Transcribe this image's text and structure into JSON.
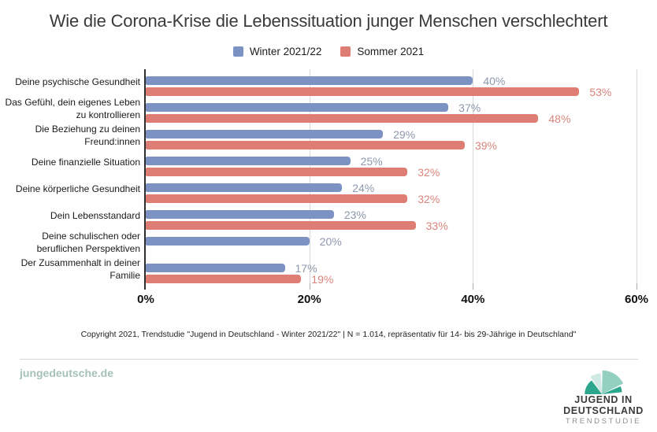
{
  "title": "Wie die Corona-Krise die Lebenssituation junger Menschen verschlechtert",
  "chart_data": {
    "type": "bar",
    "orientation": "horizontal",
    "title": "Wie die Corona-Krise die Lebenssituation junger Menschen verschlechtert",
    "categories": [
      "Deine psychische Gesundheit",
      "Das Gefühl, dein eigenes Leben\nzu kontrollieren",
      "Die Beziehung zu deinen\nFreund:innen",
      "Deine finanzielle Situation",
      "Deine körperliche Gesundheit",
      "Dein Lebensstandard",
      "Deine schulischen oder\nberuflichen Perspektiven",
      "Der Zusammenhalt in deiner\nFamilie"
    ],
    "series": [
      {
        "name": "Winter 2021/22",
        "color": "#7c92c3",
        "label_color": "#8d97ad",
        "values": [
          40,
          37,
          29,
          25,
          24,
          23,
          20,
          17
        ]
      },
      {
        "name": "Sommer 2021",
        "color": "#dd7d74",
        "label_color": "#d9847b",
        "values": [
          53,
          48,
          39,
          32,
          32,
          33,
          null,
          19
        ]
      }
    ],
    "xlim": [
      0,
      60
    ],
    "xticks": [
      {
        "value": 0,
        "label": "0%"
      },
      {
        "value": 20,
        "label": "20%"
      },
      {
        "value": 40,
        "label": "40%"
      },
      {
        "value": 60,
        "label": "60%"
      }
    ],
    "value_suffix": "%",
    "grid": "vertical-light",
    "legend_position": "top"
  },
  "footer": {
    "copyright": "Copyright 2021, Trendstudie \"Jugend in Deutschland - Winter 2021/22\" | N = 1.014, repräsentativ für 14- bis 29-Jährige in Deutschland\"",
    "website": "jungedeutsche.de",
    "logo": {
      "line1": "JUGEND IN",
      "line2": "DEUTSCHLAND",
      "line3": "TRENDSTUDIE",
      "wedge_colors": [
        "#2ca68c",
        "#d0e9e2",
        "#94d0c0",
        "#2ca68c"
      ]
    }
  },
  "colors": {
    "winter_bar": "#7c92c3",
    "sommer_bar": "#dd7d74",
    "axis": "#2e2e2e",
    "gridline": "#d9d9d9",
    "website_accent": "#a5c1ba",
    "logo_green": "#2ca68c"
  }
}
